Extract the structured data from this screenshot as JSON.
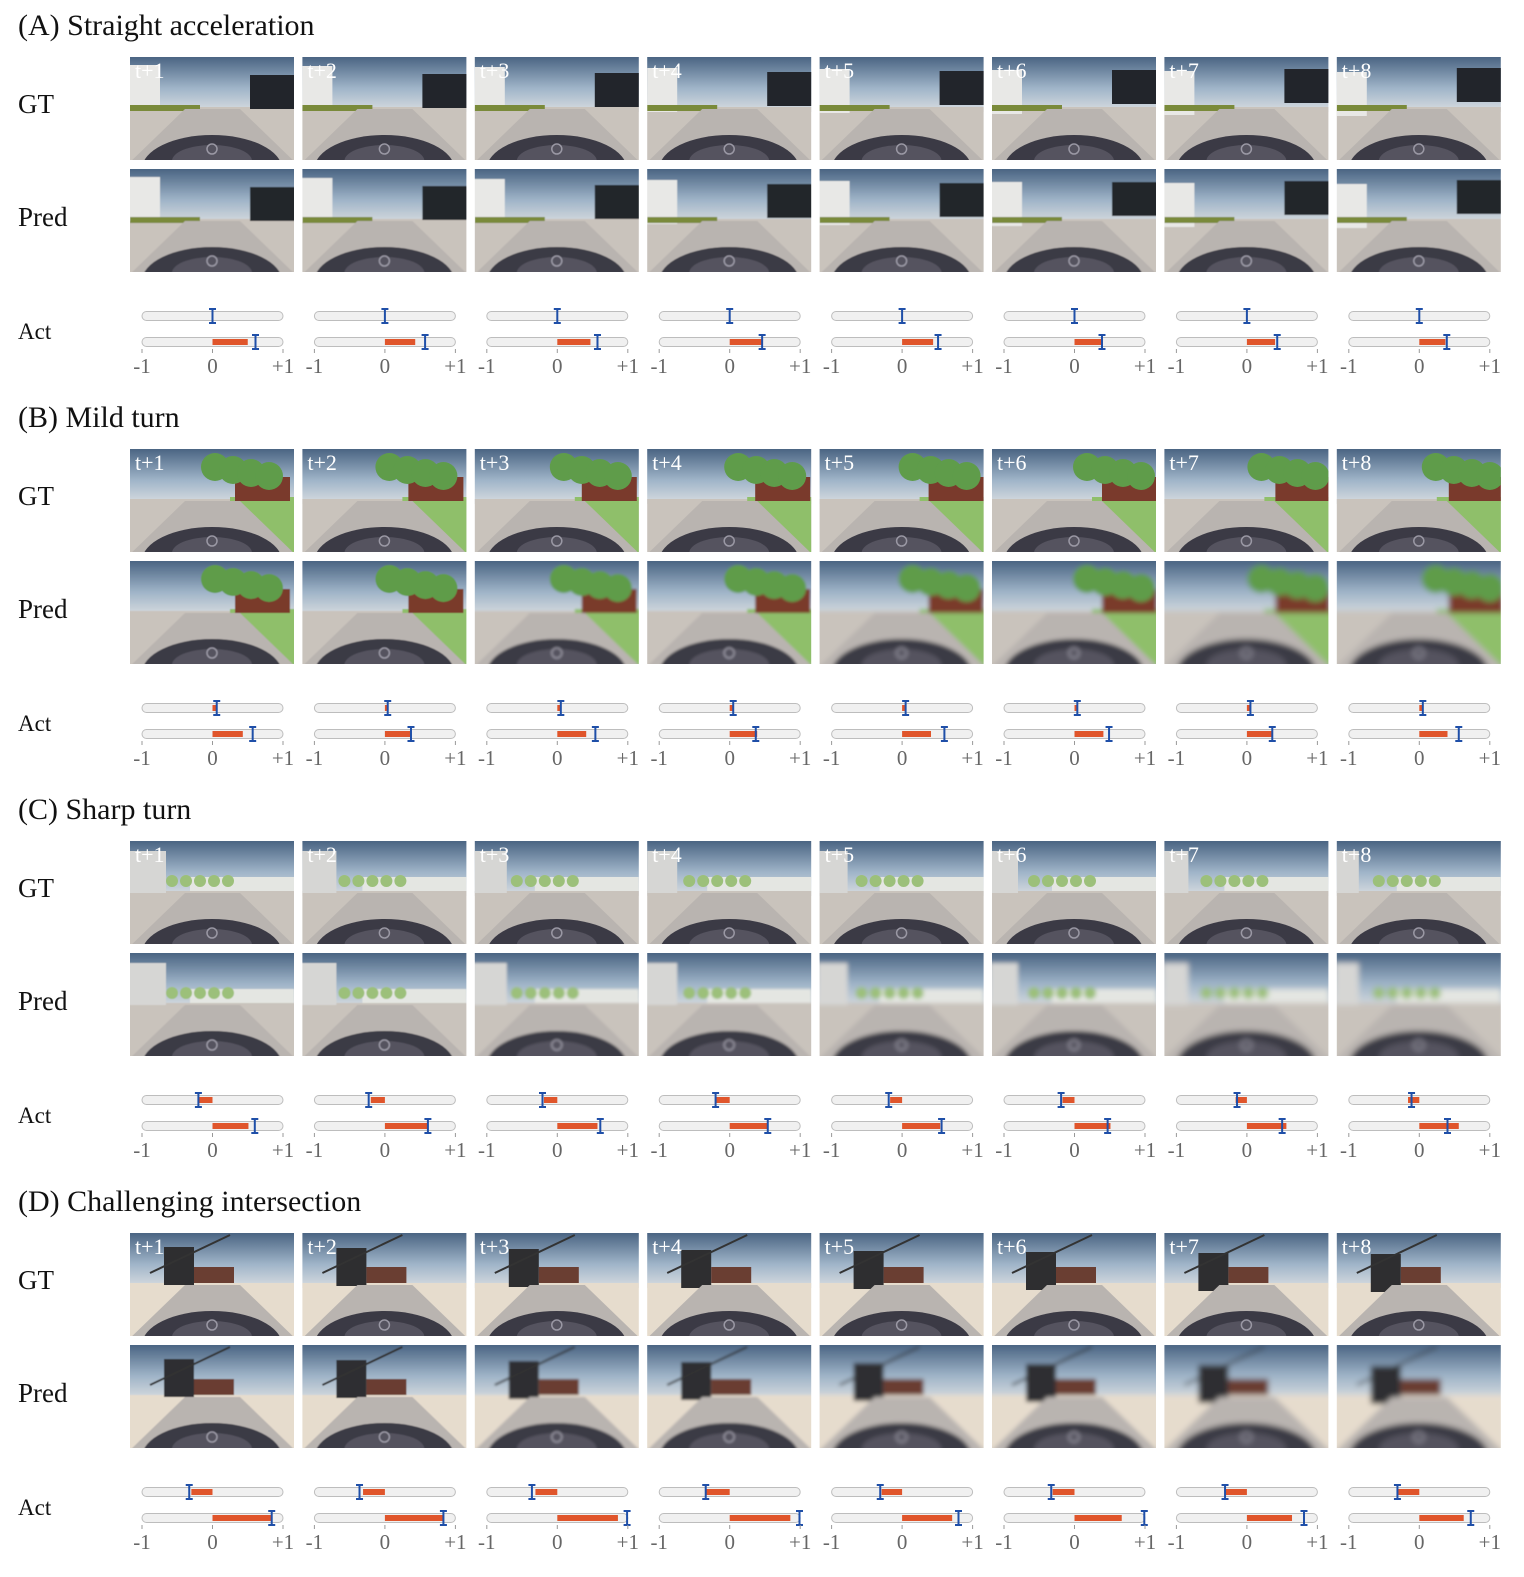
{
  "axis": {
    "lim": [
      -1,
      1
    ],
    "ticks": [
      -1,
      0,
      {
        "value": 1,
        "label": "+1"
      }
    ]
  },
  "sections": [
    {
      "title": "(A) Straight acceleration",
      "gt_label": "GT",
      "pred_label": "Pred",
      "act_label": "Act",
      "frames": [
        "t+1",
        "t+2",
        "t+3",
        "t+4",
        "t+5",
        "t+6",
        "t+7",
        "t+8"
      ],
      "steer_pred": [
        0,
        0,
        0,
        0,
        0,
        0,
        0,
        0
      ],
      "steer_gt": [
        0,
        0,
        0,
        0,
        0,
        0,
        0,
        0
      ],
      "throttle_pred": [
        0.5,
        0.43,
        0.47,
        0.46,
        0.44,
        0.4,
        0.4,
        0.37
      ],
      "throttle_gt": [
        0.61,
        0.57,
        0.57,
        0.46,
        0.51,
        0.39,
        0.43,
        0.39
      ]
    },
    {
      "title": "(B) Mild turn",
      "gt_label": "GT",
      "pred_label": "Pred",
      "act_label": "Act",
      "frames": [
        "t+1",
        "t+2",
        "t+3",
        "t+4",
        "t+5",
        "t+6",
        "t+7",
        "t+8"
      ],
      "steer_pred": [
        0.05,
        0.03,
        0.04,
        0.04,
        0.04,
        0.03,
        0.04,
        0.04
      ],
      "steer_gt": [
        0.06,
        0.04,
        0.05,
        0.05,
        0.05,
        0.04,
        0.05,
        0.05
      ],
      "throttle_pred": [
        0.43,
        0.36,
        0.41,
        0.39,
        0.41,
        0.41,
        0.37,
        0.4
      ],
      "throttle_gt": [
        0.57,
        0.37,
        0.54,
        0.37,
        0.6,
        0.49,
        0.36,
        0.56
      ]
    },
    {
      "title": "(C) Sharp turn",
      "gt_label": "GT",
      "pred_label": "Pred",
      "act_label": "Act",
      "frames": [
        "t+1",
        "t+2",
        "t+3",
        "t+4",
        "t+5",
        "t+6",
        "t+7",
        "t+8"
      ],
      "steer_pred": [
        -0.2,
        -0.2,
        -0.19,
        -0.2,
        -0.17,
        -0.17,
        -0.16,
        -0.16
      ],
      "steer_gt": [
        -0.2,
        -0.23,
        -0.21,
        -0.2,
        -0.19,
        -0.19,
        -0.14,
        -0.11
      ],
      "throttle_pred": [
        0.51,
        0.6,
        0.57,
        0.54,
        0.54,
        0.51,
        0.56,
        0.56
      ],
      "throttle_gt": [
        0.6,
        0.61,
        0.61,
        0.54,
        0.56,
        0.47,
        0.5,
        0.4
      ]
    },
    {
      "title": "(D) Challenging intersection",
      "gt_label": "GT",
      "pred_label": "Pred",
      "act_label": "Act",
      "frames": [
        "t+1",
        "t+2",
        "t+3",
        "t+4",
        "t+5",
        "t+6",
        "t+7",
        "t+8"
      ],
      "steer_pred": [
        -0.3,
        -0.31,
        -0.31,
        -0.33,
        -0.29,
        -0.31,
        -0.3,
        -0.3
      ],
      "steer_gt": [
        -0.33,
        -0.36,
        -0.36,
        -0.34,
        -0.31,
        -0.33,
        -0.31,
        -0.31
      ],
      "throttle_pred": [
        0.84,
        0.84,
        0.86,
        0.86,
        0.71,
        0.67,
        0.64,
        0.63
      ],
      "throttle_gt": [
        0.84,
        0.83,
        0.99,
        0.99,
        0.8,
        0.99,
        0.81,
        0.73
      ]
    }
  ]
}
